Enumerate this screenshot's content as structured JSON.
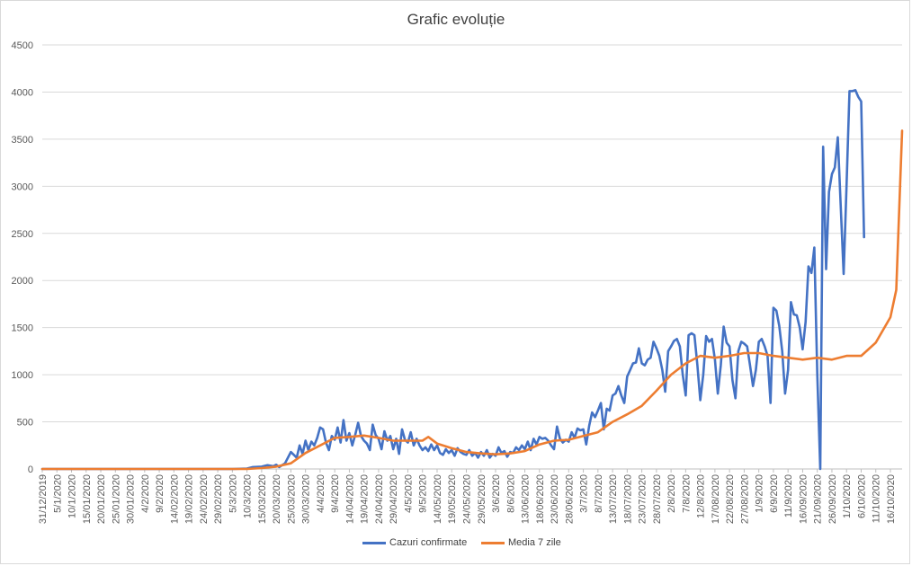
{
  "chart_data": {
    "type": "line",
    "title": "Grafic evoluție",
    "xlabel": "",
    "ylabel": "",
    "ylim": [
      0,
      4500
    ],
    "yticks": [
      0,
      500,
      1000,
      1500,
      2000,
      2500,
      3000,
      3500,
      4000,
      4500
    ],
    "grid": "horizontal",
    "legend_position": "bottom",
    "x_start": "31/12/2019",
    "x_end": "20/10/2020",
    "x_tick_labels": [
      "31/12/2019",
      "5/1/2020",
      "10/1/2020",
      "15/01/2020",
      "20/01/2020",
      "25/01/2020",
      "30/01/2020",
      "4/2/2020",
      "9/2/2020",
      "14/02/2020",
      "19/02/2020",
      "24/02/2020",
      "29/02/2020",
      "5/3/2020",
      "10/3/2020",
      "15/03/2020",
      "20/03/2020",
      "25/03/2020",
      "30/03/2020",
      "4/4/2020",
      "9/4/2020",
      "14/04/2020",
      "19/04/2020",
      "24/04/2020",
      "29/04/2020",
      "4/5/2020",
      "9/5/2020",
      "14/05/2020",
      "19/05/2020",
      "24/05/2020",
      "29/05/2020",
      "3/6/2020",
      "8/6/2020",
      "13/06/2020",
      "18/06/2020",
      "23/06/2020",
      "28/06/2020",
      "3/7/2020",
      "8/7/2020",
      "13/07/2020",
      "18/07/2020",
      "23/07/2020",
      "28/07/2020",
      "2/8/2020",
      "7/8/2020",
      "12/8/2020",
      "17/08/2020",
      "22/08/2020",
      "27/08/2020",
      "1/9/2020",
      "6/9/2020",
      "11/9/2020",
      "16/09/2020",
      "21/09/2020",
      "26/09/2020",
      "1/10/2020",
      "6/10/2020",
      "11/10/2020",
      "16/10/2020"
    ],
    "series": [
      {
        "name": "Cazuri confirmate",
        "color": "#4472C4",
        "points": [
          [
            "31/12/2019",
            0
          ],
          [
            "5/3/2020",
            0
          ],
          [
            "10/3/2020",
            5
          ],
          [
            "12/3/2020",
            20
          ],
          [
            "15/03/2020",
            25
          ],
          [
            "17/03/2020",
            40
          ],
          [
            "19/03/2020",
            30
          ],
          [
            "20/03/2020",
            45
          ],
          [
            "21/03/2020",
            20
          ],
          [
            "23/03/2020",
            60
          ],
          [
            "25/03/2020",
            180
          ],
          [
            "27/03/2020",
            120
          ],
          [
            "28/03/2020",
            250
          ],
          [
            "29/03/2020",
            160
          ],
          [
            "30/03/2020",
            300
          ],
          [
            "31/03/2020",
            200
          ],
          [
            "1/4/2020",
            290
          ],
          [
            "2/4/2020",
            250
          ],
          [
            "3/4/2020",
            330
          ],
          [
            "4/4/2020",
            440
          ],
          [
            "5/4/2020",
            420
          ],
          [
            "6/4/2020",
            280
          ],
          [
            "7/4/2020",
            200
          ],
          [
            "8/4/2020",
            350
          ],
          [
            "9/4/2020",
            310
          ],
          [
            "10/4/2020",
            440
          ],
          [
            "11/4/2020",
            280
          ],
          [
            "12/4/2020",
            520
          ],
          [
            "13/4/2020",
            300
          ],
          [
            "14/04/2020",
            380
          ],
          [
            "15/04/2020",
            250
          ],
          [
            "16/04/2020",
            360
          ],
          [
            "17/04/2020",
            490
          ],
          [
            "18/04/2020",
            350
          ],
          [
            "19/04/2020",
            300
          ],
          [
            "20/04/2020",
            270
          ],
          [
            "21/04/2020",
            200
          ],
          [
            "22/04/2020",
            470
          ],
          [
            "23/04/2020",
            360
          ],
          [
            "24/04/2020",
            320
          ],
          [
            "25/04/2020",
            210
          ],
          [
            "26/04/2020",
            400
          ],
          [
            "27/04/2020",
            300
          ],
          [
            "28/04/2020",
            350
          ],
          [
            "29/04/2020",
            210
          ],
          [
            "30/04/2020",
            320
          ],
          [
            "1/5/2020",
            160
          ],
          [
            "2/5/2020",
            420
          ],
          [
            "3/5/2020",
            310
          ],
          [
            "4/5/2020",
            280
          ],
          [
            "5/5/2020",
            390
          ],
          [
            "6/5/2020",
            250
          ],
          [
            "7/5/2020",
            320
          ],
          [
            "8/5/2020",
            250
          ],
          [
            "9/5/2020",
            200
          ],
          [
            "10/5/2020",
            230
          ],
          [
            "11/5/2020",
            190
          ],
          [
            "12/5/2020",
            260
          ],
          [
            "13/5/2020",
            200
          ],
          [
            "14/05/2020",
            250
          ],
          [
            "15/05/2020",
            170
          ],
          [
            "16/05/2020",
            150
          ],
          [
            "17/05/2020",
            210
          ],
          [
            "18/05/2020",
            170
          ],
          [
            "19/05/2020",
            200
          ],
          [
            "20/05/2020",
            140
          ],
          [
            "21/05/2020",
            220
          ],
          [
            "22/05/2020",
            180
          ],
          [
            "23/05/2020",
            160
          ],
          [
            "24/05/2020",
            150
          ],
          [
            "25/05/2020",
            200
          ],
          [
            "26/05/2020",
            140
          ],
          [
            "27/05/2020",
            170
          ],
          [
            "28/05/2020",
            120
          ],
          [
            "29/05/2020",
            180
          ],
          [
            "30/05/2020",
            140
          ],
          [
            "31/05/2020",
            200
          ],
          [
            "1/6/2020",
            120
          ],
          [
            "2/6/2020",
            160
          ],
          [
            "3/6/2020",
            140
          ],
          [
            "4/6/2020",
            230
          ],
          [
            "5/6/2020",
            170
          ],
          [
            "6/6/2020",
            190
          ],
          [
            "7/6/2020",
            130
          ],
          [
            "8/6/2020",
            180
          ],
          [
            "9/6/2020",
            170
          ],
          [
            "10/6/2020",
            230
          ],
          [
            "11/6/2020",
            200
          ],
          [
            "12/6/2020",
            250
          ],
          [
            "13/06/2020",
            210
          ],
          [
            "14/06/2020",
            290
          ],
          [
            "15/06/2020",
            200
          ],
          [
            "16/06/2020",
            320
          ],
          [
            "17/06/2020",
            260
          ],
          [
            "18/06/2020",
            340
          ],
          [
            "19/06/2020",
            320
          ],
          [
            "20/06/2020",
            330
          ],
          [
            "21/06/2020",
            300
          ],
          [
            "22/06/2020",
            250
          ],
          [
            "23/06/2020",
            210
          ],
          [
            "24/06/2020",
            450
          ],
          [
            "25/06/2020",
            320
          ],
          [
            "26/06/2020",
            280
          ],
          [
            "27/06/2020",
            310
          ],
          [
            "28/06/2020",
            290
          ],
          [
            "29/06/2020",
            390
          ],
          [
            "30/06/2020",
            330
          ],
          [
            "1/7/2020",
            430
          ],
          [
            "2/7/2020",
            410
          ],
          [
            "3/7/2020",
            420
          ],
          [
            "4/7/2020",
            260
          ],
          [
            "5/7/2020",
            460
          ],
          [
            "6/7/2020",
            600
          ],
          [
            "7/7/2020",
            550
          ],
          [
            "8/7/2020",
            620
          ],
          [
            "9/7/2020",
            700
          ],
          [
            "10/7/2020",
            420
          ],
          [
            "11/7/2020",
            640
          ],
          [
            "12/7/2020",
            620
          ],
          [
            "13/07/2020",
            780
          ],
          [
            "14/07/2020",
            800
          ],
          [
            "15/07/2020",
            880
          ],
          [
            "16/07/2020",
            780
          ],
          [
            "17/07/2020",
            700
          ],
          [
            "18/07/2020",
            980
          ],
          [
            "19/07/2020",
            1050
          ],
          [
            "20/07/2020",
            1120
          ],
          [
            "21/07/2020",
            1130
          ],
          [
            "22/07/2020",
            1280
          ],
          [
            "23/07/2020",
            1120
          ],
          [
            "24/07/2020",
            1100
          ],
          [
            "25/07/2020",
            1160
          ],
          [
            "26/07/2020",
            1180
          ],
          [
            "27/07/2020",
            1350
          ],
          [
            "28/07/2020",
            1280
          ],
          [
            "29/07/2020",
            1200
          ],
          [
            "30/07/2020",
            1050
          ],
          [
            "31/07/2020",
            820
          ],
          [
            "1/8/2020",
            1250
          ],
          [
            "2/8/2020",
            1300
          ],
          [
            "3/8/2020",
            1360
          ],
          [
            "4/8/2020",
            1380
          ],
          [
            "5/8/2020",
            1300
          ],
          [
            "6/8/2020",
            1000
          ],
          [
            "7/8/2020",
            780
          ],
          [
            "8/8/2020",
            1420
          ],
          [
            "9/8/2020",
            1440
          ],
          [
            "10/8/2020",
            1420
          ],
          [
            "11/8/2020",
            1100
          ],
          [
            "12/8/2020",
            730
          ],
          [
            "13/8/2020",
            1000
          ],
          [
            "14/8/2020",
            1410
          ],
          [
            "15/8/2020",
            1350
          ],
          [
            "16/8/2020",
            1380
          ],
          [
            "17/08/2020",
            1160
          ],
          [
            "18/08/2020",
            800
          ],
          [
            "19/08/2020",
            1100
          ],
          [
            "20/08/2020",
            1510
          ],
          [
            "21/08/2020",
            1340
          ],
          [
            "22/08/2020",
            1300
          ],
          [
            "23/08/2020",
            940
          ],
          [
            "24/08/2020",
            750
          ],
          [
            "25/08/2020",
            1250
          ],
          [
            "26/08/2020",
            1350
          ],
          [
            "27/08/2020",
            1330
          ],
          [
            "28/08/2020",
            1300
          ],
          [
            "29/08/2020",
            1100
          ],
          [
            "30/08/2020",
            880
          ],
          [
            "31/08/2020",
            1050
          ],
          [
            "1/9/2020",
            1350
          ],
          [
            "2/9/2020",
            1380
          ],
          [
            "3/9/2020",
            1300
          ],
          [
            "4/9/2020",
            1200
          ],
          [
            "5/9/2020",
            700
          ],
          [
            "6/9/2020",
            1710
          ],
          [
            "7/9/2020",
            1680
          ],
          [
            "8/9/2020",
            1520
          ],
          [
            "9/9/2020",
            1250
          ],
          [
            "10/9/2020",
            800
          ],
          [
            "11/9/2020",
            1050
          ],
          [
            "12/9/2020",
            1770
          ],
          [
            "13/9/2020",
            1640
          ],
          [
            "14/9/2020",
            1630
          ],
          [
            "15/9/2020",
            1500
          ],
          [
            "16/09/2020",
            1270
          ],
          [
            "17/09/2020",
            1560
          ],
          [
            "18/09/2020",
            2150
          ],
          [
            "19/09/2020",
            2080
          ],
          [
            "20/09/2020",
            2350
          ],
          [
            "21/09/2020",
            1000
          ],
          [
            "22/09/2020",
            0
          ],
          [
            "23/09/2020",
            3420
          ],
          [
            "24/09/2020",
            2120
          ],
          [
            "25/09/2020",
            2940
          ],
          [
            "26/09/2020",
            3130
          ],
          [
            "27/09/2020",
            3200
          ],
          [
            "28/09/2020",
            3520
          ],
          [
            "29/09/2020",
            2800
          ],
          [
            "30/09/2020",
            2070
          ],
          [
            "1/10/2020",
            3000
          ],
          [
            "2/10/2020",
            4010
          ],
          [
            "3/10/2020",
            4010
          ],
          [
            "4/10/2020",
            4020
          ],
          [
            "5/10/2020",
            3950
          ],
          [
            "6/10/2020",
            3900
          ],
          [
            "7/10/2020",
            2460
          ]
        ]
      },
      {
        "name": "Media 7 zile",
        "color": "#ED7D31",
        "points": [
          [
            "31/12/2019",
            0
          ],
          [
            "10/3/2020",
            0
          ],
          [
            "15/03/2020",
            10
          ],
          [
            "20/03/2020",
            25
          ],
          [
            "25/03/2020",
            60
          ],
          [
            "30/03/2020",
            170
          ],
          [
            "4/4/2020",
            250
          ],
          [
            "9/4/2020",
            330
          ],
          [
            "14/04/2020",
            340
          ],
          [
            "19/04/2020",
            355
          ],
          [
            "24/04/2020",
            330
          ],
          [
            "29/04/2020",
            300
          ],
          [
            "4/5/2020",
            300
          ],
          [
            "9/5/2020",
            300
          ],
          [
            "11/5/2020",
            340
          ],
          [
            "14/05/2020",
            270
          ],
          [
            "19/05/2020",
            220
          ],
          [
            "24/05/2020",
            180
          ],
          [
            "29/05/2020",
            165
          ],
          [
            "3/6/2020",
            155
          ],
          [
            "8/6/2020",
            165
          ],
          [
            "13/06/2020",
            190
          ],
          [
            "18/06/2020",
            260
          ],
          [
            "23/06/2020",
            300
          ],
          [
            "28/06/2020",
            310
          ],
          [
            "3/7/2020",
            350
          ],
          [
            "8/7/2020",
            390
          ],
          [
            "13/07/2020",
            500
          ],
          [
            "18/07/2020",
            580
          ],
          [
            "23/07/2020",
            670
          ],
          [
            "28/07/2020",
            830
          ],
          [
            "2/8/2020",
            1000
          ],
          [
            "7/8/2020",
            1120
          ],
          [
            "12/8/2020",
            1200
          ],
          [
            "17/08/2020",
            1180
          ],
          [
            "22/08/2020",
            1200
          ],
          [
            "27/08/2020",
            1230
          ],
          [
            "1/9/2020",
            1230
          ],
          [
            "6/9/2020",
            1200
          ],
          [
            "11/9/2020",
            1180
          ],
          [
            "16/09/2020",
            1160
          ],
          [
            "21/09/2020",
            1180
          ],
          [
            "26/09/2020",
            1160
          ],
          [
            "1/10/2020",
            1200
          ],
          [
            "6/10/2020",
            1200
          ],
          [
            "11/10/2020",
            1340
          ],
          [
            "16/10/2020",
            1610
          ],
          [
            "18/10/2020",
            1900
          ],
          [
            "20/10/2020",
            3590
          ]
        ]
      }
    ]
  }
}
